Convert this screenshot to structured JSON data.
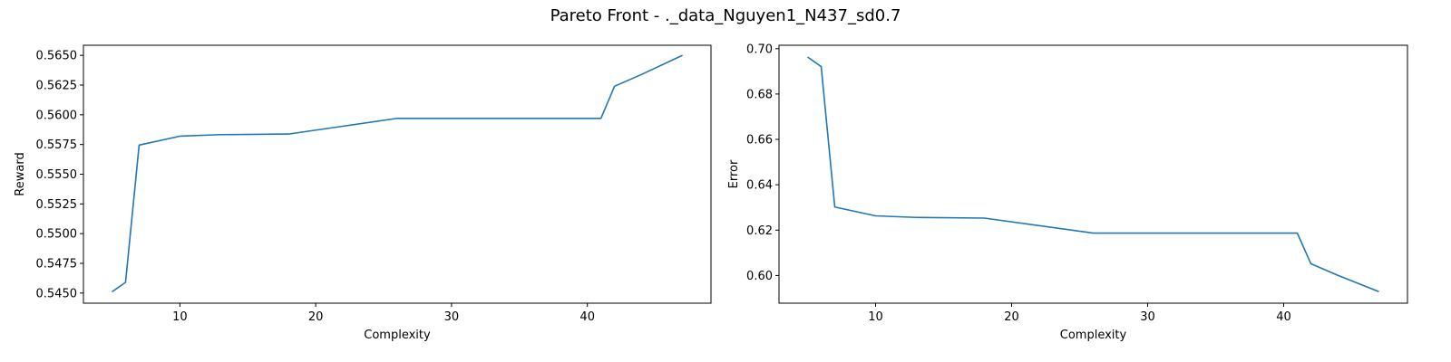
{
  "figure": {
    "title": "Pareto Front - ._data_Nguyen1_N437_sd0.7"
  },
  "chart_data": [
    {
      "type": "line",
      "xlabel": "Complexity",
      "ylabel": "Reward",
      "xlim": [
        2.9,
        49.1
      ],
      "ylim": [
        0.54415,
        0.56585
      ],
      "xticks": [
        10,
        20,
        30,
        40
      ],
      "yticks": [
        0.545,
        0.5475,
        0.55,
        0.5525,
        0.555,
        0.5575,
        0.56,
        0.5625,
        0.565
      ],
      "ytick_decimals": 4,
      "grid": false,
      "color": "#1f77b4",
      "x": [
        5,
        6,
        7,
        10,
        13,
        18,
        26,
        41,
        42,
        44,
        47
      ],
      "y": [
        0.5451,
        0.5459,
        0.55745,
        0.5582,
        0.55833,
        0.55838,
        0.5597,
        0.5597,
        0.5624,
        0.5634,
        0.565
      ]
    },
    {
      "type": "line",
      "xlabel": "Complexity",
      "ylabel": "Error",
      "xlim": [
        2.9,
        49.1
      ],
      "ylim": [
        0.5878,
        0.7015
      ],
      "xticks": [
        10,
        20,
        30,
        40
      ],
      "yticks": [
        0.6,
        0.62,
        0.64,
        0.66,
        0.68,
        0.7
      ],
      "ytick_decimals": 2,
      "grid": false,
      "color": "#1f77b4",
      "x": [
        5,
        6,
        7,
        10,
        13,
        18,
        26,
        41,
        42,
        44,
        47
      ],
      "y": [
        0.6963,
        0.6921,
        0.6302,
        0.6263,
        0.6256,
        0.6253,
        0.6187,
        0.6187,
        0.6052,
        0.6,
        0.5929
      ]
    }
  ]
}
